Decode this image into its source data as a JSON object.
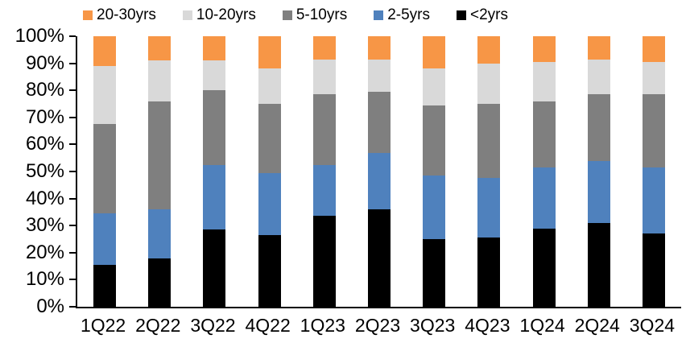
{
  "chart_data": {
    "type": "bar",
    "subtype": "stacked-100-percent",
    "title": "",
    "xlabel": "",
    "ylabel": "",
    "ylim": [
      0,
      100
    ],
    "grid": false,
    "legend_position": "top",
    "legend_order_series_indices": [
      4,
      3,
      2,
      1,
      0
    ],
    "ytick_labels": [
      "0%",
      "10%",
      "20%",
      "30%",
      "40%",
      "50%",
      "60%",
      "70%",
      "80%",
      "90%",
      "100%"
    ],
    "categories": [
      "1Q22",
      "2Q22",
      "3Q22",
      "4Q22",
      "1Q23",
      "2Q23",
      "3Q23",
      "4Q23",
      "1Q24",
      "2Q24",
      "3Q24"
    ],
    "series": [
      {
        "name": "<2yrs",
        "color": "#000000",
        "values": [
          15.5,
          18.0,
          28.5,
          26.5,
          33.5,
          36.0,
          25.0,
          25.5,
          29.0,
          31.0,
          27.0
        ]
      },
      {
        "name": "2-5yrs",
        "color": "#4F81BD",
        "values": [
          19.0,
          18.0,
          24.0,
          23.0,
          19.0,
          21.0,
          23.5,
          22.0,
          22.5,
          23.0,
          24.5
        ]
      },
      {
        "name": "5-10yrs",
        "color": "#7F7F7F",
        "values": [
          33.0,
          40.0,
          27.5,
          25.5,
          26.0,
          22.5,
          26.0,
          27.5,
          24.5,
          24.5,
          27.0
        ]
      },
      {
        "name": "10-20yrs",
        "color": "#D9D9D9",
        "values": [
          21.5,
          15.0,
          11.0,
          13.0,
          13.0,
          12.0,
          13.5,
          15.0,
          14.5,
          13.0,
          12.0
        ]
      },
      {
        "name": "20-30yrs",
        "color": "#F79646",
        "values": [
          11.0,
          9.0,
          9.0,
          12.0,
          8.5,
          8.5,
          12.0,
          10.0,
          9.5,
          8.5,
          9.5
        ]
      }
    ]
  }
}
